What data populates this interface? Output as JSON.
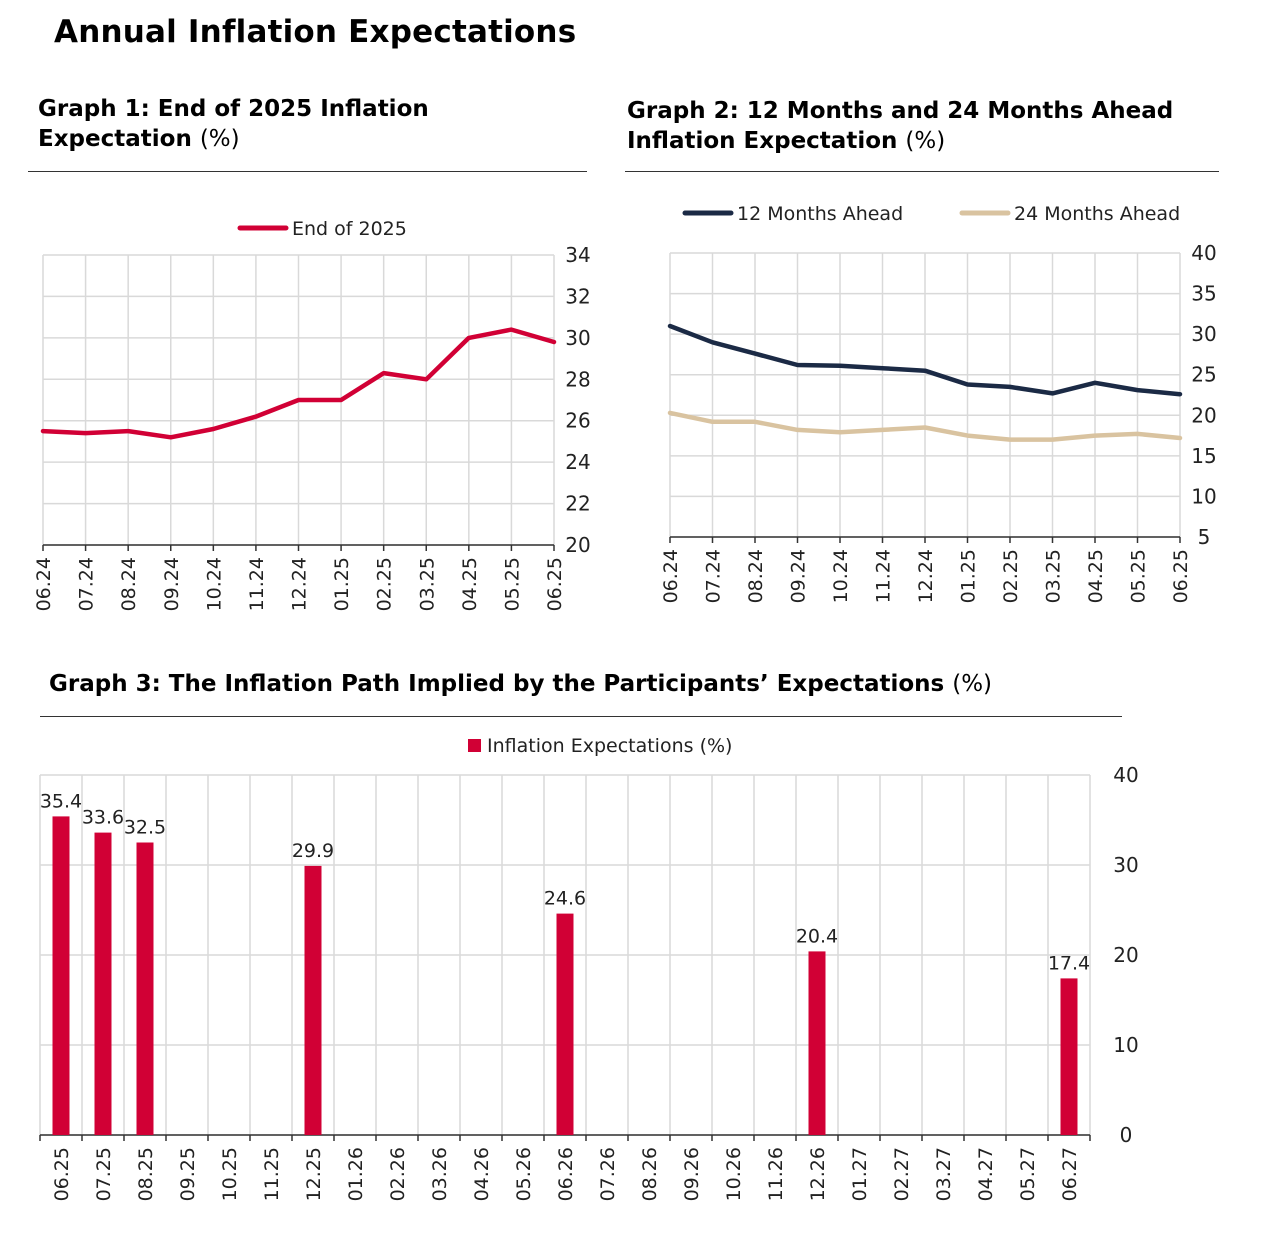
{
  "page": {
    "title": "Annual Inflation Expectations"
  },
  "graphs": {
    "g1": {
      "title": "Graph 1: End of 2025 Inflation Expectation",
      "unit": "(%)"
    },
    "g2": {
      "title": "Graph 2: 12 Months and 24 Months Ahead Inflation Expectation",
      "unit": "(%)"
    },
    "g3": {
      "title": "Graph 3: The Inflation Path Implied by the Participants’ Expectations",
      "unit": "(%)"
    }
  },
  "colors": {
    "red": "#d10035",
    "navy": "#1b2a45",
    "beige": "#d9c3a0",
    "grid": "#d9d9d9",
    "axis": "#555555"
  },
  "chart_data": [
    {
      "id": "g1",
      "type": "line",
      "categories": [
        "06.24",
        "07.24",
        "08.24",
        "09.24",
        "10.24",
        "11.24",
        "12.24",
        "01.25",
        "02.25",
        "03.25",
        "04.25",
        "05.25",
        "06.25"
      ],
      "series": [
        {
          "name": "End of 2025",
          "color": "#d10035",
          "values": [
            25.5,
            25.4,
            25.5,
            25.2,
            25.6,
            26.2,
            27.0,
            27.0,
            28.3,
            28.0,
            30.0,
            30.4,
            29.8
          ]
        }
      ],
      "ylim": [
        20,
        34
      ],
      "yticks": [
        20,
        22,
        24,
        26,
        28,
        30,
        32,
        34
      ],
      "legend": "top-center",
      "grid": true,
      "title": "Graph 1: End of 2025 Inflation Expectation (%)"
    },
    {
      "id": "g2",
      "type": "line",
      "categories": [
        "06.24",
        "07.24",
        "08.24",
        "09.24",
        "10.24",
        "11.24",
        "12.24",
        "01.25",
        "02.25",
        "03.25",
        "04.25",
        "05.25",
        "06.25"
      ],
      "series": [
        {
          "name": "12 Months Ahead",
          "color": "#1b2a45",
          "values": [
            31.0,
            29.0,
            27.6,
            26.2,
            26.1,
            25.8,
            25.5,
            23.8,
            23.5,
            22.7,
            24.0,
            23.1,
            22.6
          ]
        },
        {
          "name": "24 Months Ahead",
          "color": "#d9c3a0",
          "values": [
            20.3,
            19.2,
            19.2,
            18.2,
            17.9,
            18.2,
            18.5,
            17.5,
            17.0,
            17.0,
            17.5,
            17.7,
            17.2
          ]
        }
      ],
      "ylim": [
        5,
        40
      ],
      "yticks": [
        5,
        10,
        15,
        20,
        25,
        30,
        35,
        40
      ],
      "legend": "top",
      "grid": true,
      "title": "Graph 2: 12 Months and 24 Months Ahead Inflation Expectation (%)"
    },
    {
      "id": "g3",
      "type": "bar",
      "categories": [
        "06.25",
        "07.25",
        "08.25",
        "09.25",
        "10.25",
        "11.25",
        "12.25",
        "01.26",
        "02.26",
        "03.26",
        "04.26",
        "05.26",
        "06.26",
        "07.26",
        "08.26",
        "09.26",
        "10.26",
        "11.26",
        "12.26",
        "01.27",
        "02.27",
        "03.27",
        "04.27",
        "05.27",
        "06.27"
      ],
      "series": [
        {
          "name": "Inflation Expectations (%)",
          "color": "#d10035",
          "values": [
            35.4,
            33.6,
            32.5,
            null,
            null,
            null,
            29.9,
            null,
            null,
            null,
            null,
            null,
            24.6,
            null,
            null,
            null,
            null,
            null,
            20.4,
            null,
            null,
            null,
            null,
            null,
            17.4
          ]
        }
      ],
      "data_labels": [
        "35.4",
        "33.6",
        "32.5",
        "",
        "",
        "",
        "29.9",
        "",
        "",
        "",
        "",
        "",
        "24.6",
        "",
        "",
        "",
        "",
        "",
        "20.4",
        "",
        "",
        "",
        "",
        "",
        "17.4"
      ],
      "ylim": [
        0,
        40
      ],
      "yticks": [
        0,
        10,
        20,
        30,
        40
      ],
      "legend": "top-center",
      "grid": true,
      "title": "Graph 3: The Inflation Path Implied by the Participants’ Expectations (%)"
    }
  ]
}
